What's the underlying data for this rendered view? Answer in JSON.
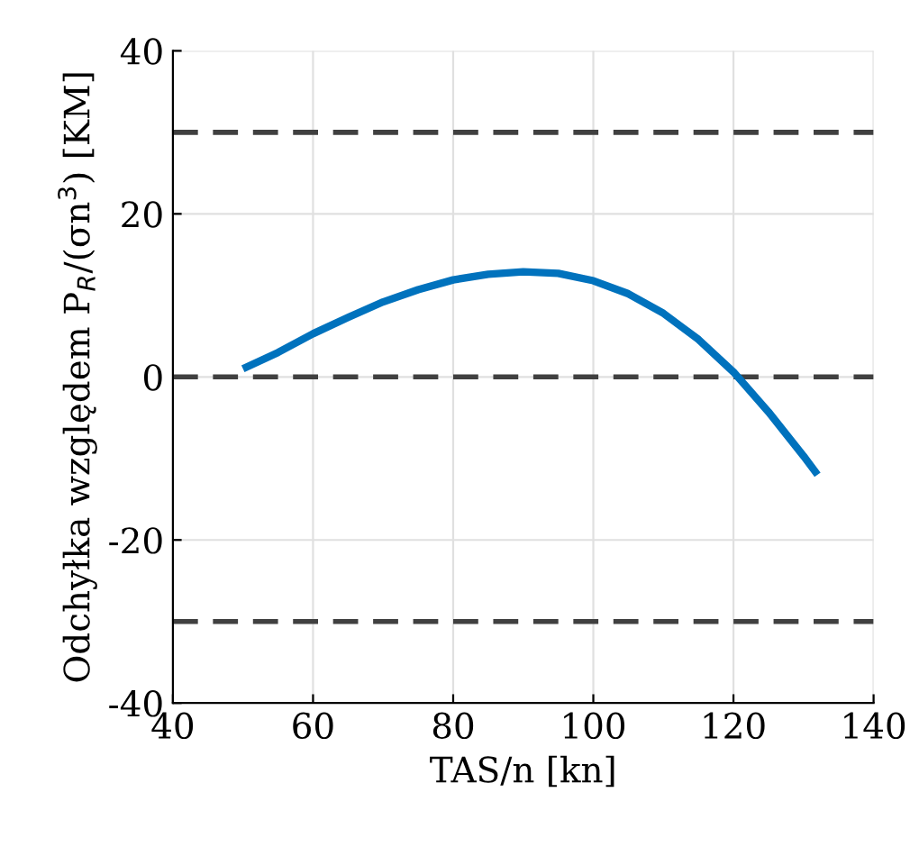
{
  "chart_data": {
    "type": "line",
    "xlabel": "TAS/n [kn]",
    "ylabel": "Odchyłka względem P$_{R}$/(σn$^{3}$) [KM]",
    "series": [
      {
        "color": "#0072bd",
        "x": [
          50,
          55,
          60,
          65,
          70,
          75,
          80,
          85,
          90,
          95,
          100,
          105,
          110,
          115,
          120,
          125,
          130,
          132
        ],
        "values": [
          1,
          3,
          5.3,
          7.3,
          9.2,
          10.7,
          11.9,
          12.6,
          12.9,
          12.7,
          11.8,
          10.2,
          7.8,
          4.6,
          0.6,
          -4.3,
          -9.7,
          -12
        ]
      }
    ],
    "xlim": [
      40,
      140
    ],
    "xticks": [
      40,
      60,
      80,
      100,
      120,
      140
    ],
    "ylim": [
      -40,
      40
    ],
    "yticks": [
      -40,
      -20,
      0,
      20,
      40
    ],
    "grid": true,
    "ref_lines": [
      {
        "axis": "y",
        "value": 30,
        "color": "#404040",
        "line_style": "dashed"
      },
      {
        "axis": "y",
        "value": 0,
        "color": "#404040",
        "line_style": "dashed"
      },
      {
        "axis": "y",
        "value": -30,
        "color": "#404040",
        "line_style": "dashed"
      }
    ]
  }
}
